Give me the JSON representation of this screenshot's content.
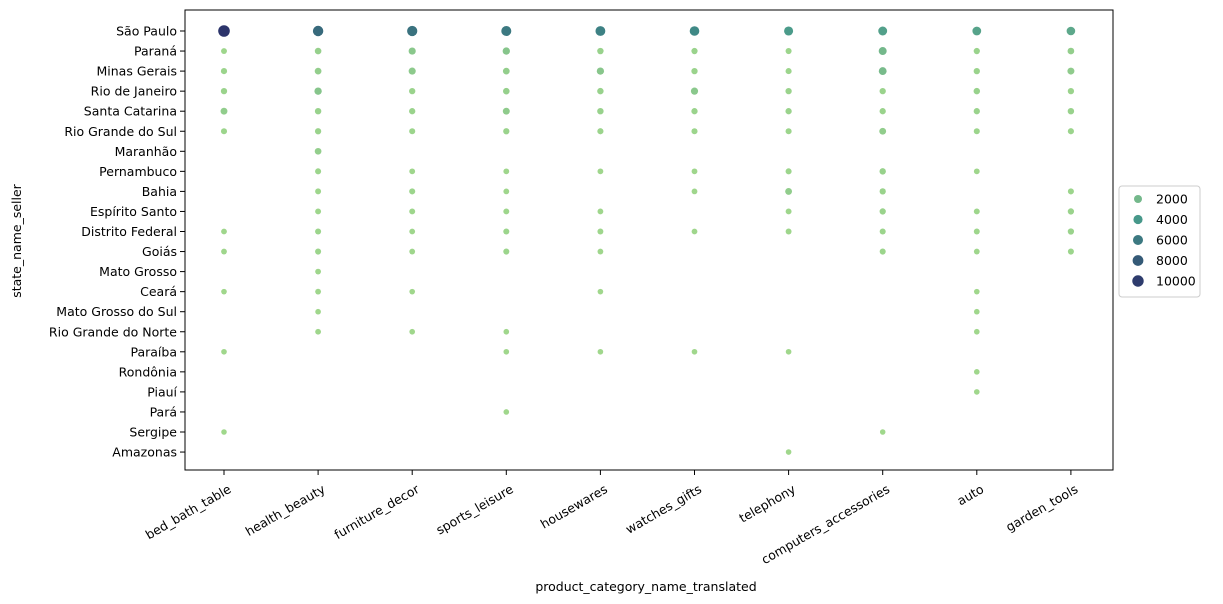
{
  "chart_data": {
    "type": "scatter",
    "xlabel": "product_category_name_translated",
    "ylabel": "state_name_seller",
    "categories_x": [
      "bed_bath_table",
      "health_beauty",
      "furniture_decor",
      "sports_leisure",
      "housewares",
      "watches_gifts",
      "telephony",
      "computers_accessories",
      "auto",
      "garden_tools"
    ],
    "categories_y": [
      "São Paulo",
      "Paraná",
      "Minas Gerais",
      "Rio de Janeiro",
      "Santa Catarina",
      "Rio Grande do Sul",
      "Maranhão",
      "Pernambuco",
      "Bahia",
      "Espírito Santo",
      "Distrito Federal",
      "Goiás",
      "Mato Grosso",
      "Ceará",
      "Mato Grosso do Sul",
      "Rio Grande do Norte",
      "Paraíba",
      "Rondônia",
      "Piauí",
      "Pará",
      "Sergipe",
      "Amazonas"
    ],
    "legend": {
      "placement": "right",
      "entries": [
        {
          "label": "2000",
          "value": 2000
        },
        {
          "label": "4000",
          "value": 4000
        },
        {
          "label": "6000",
          "value": 6000
        },
        {
          "label": "8000",
          "value": 8000
        },
        {
          "label": "10000",
          "value": 10000
        }
      ]
    },
    "colors": {
      "low": "#a1d88c",
      "mid": "#42958a",
      "high": "#2c346b"
    },
    "points": [
      {
        "x": "bed_bath_table",
        "y": "São Paulo",
        "value": 10500
      },
      {
        "x": "bed_bath_table",
        "y": "Paraná",
        "value": 150
      },
      {
        "x": "bed_bath_table",
        "y": "Minas Gerais",
        "value": 250
      },
      {
        "x": "bed_bath_table",
        "y": "Rio de Janeiro",
        "value": 300
      },
      {
        "x": "bed_bath_table",
        "y": "Santa Catarina",
        "value": 700
      },
      {
        "x": "bed_bath_table",
        "y": "Rio Grande do Sul",
        "value": 200
      },
      {
        "x": "bed_bath_table",
        "y": "Distrito Federal",
        "value": 100
      },
      {
        "x": "bed_bath_table",
        "y": "Goiás",
        "value": 100
      },
      {
        "x": "bed_bath_table",
        "y": "Ceará",
        "value": 50
      },
      {
        "x": "bed_bath_table",
        "y": "Paraíba",
        "value": 50
      },
      {
        "x": "bed_bath_table",
        "y": "Sergipe",
        "value": 30
      },
      {
        "x": "health_beauty",
        "y": "São Paulo",
        "value": 7000
      },
      {
        "x": "health_beauty",
        "y": "Paraná",
        "value": 500
      },
      {
        "x": "health_beauty",
        "y": "Minas Gerais",
        "value": 600
      },
      {
        "x": "health_beauty",
        "y": "Rio de Janeiro",
        "value": 1200
      },
      {
        "x": "health_beauty",
        "y": "Santa Catarina",
        "value": 400
      },
      {
        "x": "health_beauty",
        "y": "Rio Grande do Sul",
        "value": 300
      },
      {
        "x": "health_beauty",
        "y": "Maranhão",
        "value": 600
      },
      {
        "x": "health_beauty",
        "y": "Pernambuco",
        "value": 200
      },
      {
        "x": "health_beauty",
        "y": "Bahia",
        "value": 150
      },
      {
        "x": "health_beauty",
        "y": "Espírito Santo",
        "value": 150
      },
      {
        "x": "health_beauty",
        "y": "Distrito Federal",
        "value": 200
      },
      {
        "x": "health_beauty",
        "y": "Goiás",
        "value": 200
      },
      {
        "x": "health_beauty",
        "y": "Mato Grosso",
        "value": 100
      },
      {
        "x": "health_beauty",
        "y": "Ceará",
        "value": 100
      },
      {
        "x": "health_beauty",
        "y": "Mato Grosso do Sul",
        "value": 50
      },
      {
        "x": "health_beauty",
        "y": "Rio Grande do Norte",
        "value": 100
      },
      {
        "x": "furniture_decor",
        "y": "São Paulo",
        "value": 6500
      },
      {
        "x": "furniture_decor",
        "y": "Paraná",
        "value": 1000
      },
      {
        "x": "furniture_decor",
        "y": "Minas Gerais",
        "value": 900
      },
      {
        "x": "furniture_decor",
        "y": "Rio de Janeiro",
        "value": 300
      },
      {
        "x": "furniture_decor",
        "y": "Santa Catarina",
        "value": 300
      },
      {
        "x": "furniture_decor",
        "y": "Rio Grande do Sul",
        "value": 200
      },
      {
        "x": "furniture_decor",
        "y": "Pernambuco",
        "value": 100
      },
      {
        "x": "furniture_decor",
        "y": "Bahia",
        "value": 200
      },
      {
        "x": "furniture_decor",
        "y": "Espírito Santo",
        "value": 150
      },
      {
        "x": "furniture_decor",
        "y": "Distrito Federal",
        "value": 100
      },
      {
        "x": "furniture_decor",
        "y": "Goiás",
        "value": 100
      },
      {
        "x": "furniture_decor",
        "y": "Ceará",
        "value": 50
      },
      {
        "x": "furniture_decor",
        "y": "Rio Grande do Norte",
        "value": 50
      },
      {
        "x": "sports_leisure",
        "y": "São Paulo",
        "value": 6000
      },
      {
        "x": "sports_leisure",
        "y": "Paraná",
        "value": 1200
      },
      {
        "x": "sports_leisure",
        "y": "Minas Gerais",
        "value": 600
      },
      {
        "x": "sports_leisure",
        "y": "Rio de Janeiro",
        "value": 500
      },
      {
        "x": "sports_leisure",
        "y": "Santa Catarina",
        "value": 800
      },
      {
        "x": "sports_leisure",
        "y": "Rio Grande do Sul",
        "value": 300
      },
      {
        "x": "sports_leisure",
        "y": "Pernambuco",
        "value": 100
      },
      {
        "x": "sports_leisure",
        "y": "Bahia",
        "value": 100
      },
      {
        "x": "sports_leisure",
        "y": "Espírito Santo",
        "value": 150
      },
      {
        "x": "sports_leisure",
        "y": "Distrito Federal",
        "value": 200
      },
      {
        "x": "sports_leisure",
        "y": "Goiás",
        "value": 200
      },
      {
        "x": "sports_leisure",
        "y": "Rio Grande do Norte",
        "value": 50
      },
      {
        "x": "sports_leisure",
        "y": "Paraíba",
        "value": 50
      },
      {
        "x": "sports_leisure",
        "y": "Pará",
        "value": 50
      },
      {
        "x": "housewares",
        "y": "São Paulo",
        "value": 5500
      },
      {
        "x": "housewares",
        "y": "Paraná",
        "value": 400
      },
      {
        "x": "housewares",
        "y": "Minas Gerais",
        "value": 1100
      },
      {
        "x": "housewares",
        "y": "Rio de Janeiro",
        "value": 400
      },
      {
        "x": "housewares",
        "y": "Santa Catarina",
        "value": 400
      },
      {
        "x": "housewares",
        "y": "Rio Grande do Sul",
        "value": 250
      },
      {
        "x": "housewares",
        "y": "Pernambuco",
        "value": 100
      },
      {
        "x": "housewares",
        "y": "Espírito Santo",
        "value": 100
      },
      {
        "x": "housewares",
        "y": "Distrito Federal",
        "value": 150
      },
      {
        "x": "housewares",
        "y": "Goiás",
        "value": 100
      },
      {
        "x": "housewares",
        "y": "Ceará",
        "value": 50
      },
      {
        "x": "housewares",
        "y": "Paraíba",
        "value": 50
      },
      {
        "x": "watches_gifts",
        "y": "São Paulo",
        "value": 5000
      },
      {
        "x": "watches_gifts",
        "y": "Paraná",
        "value": 300
      },
      {
        "x": "watches_gifts",
        "y": "Minas Gerais",
        "value": 300
      },
      {
        "x": "watches_gifts",
        "y": "Rio de Janeiro",
        "value": 1000
      },
      {
        "x": "watches_gifts",
        "y": "Santa Catarina",
        "value": 300
      },
      {
        "x": "watches_gifts",
        "y": "Rio Grande do Sul",
        "value": 200
      },
      {
        "x": "watches_gifts",
        "y": "Pernambuco",
        "value": 100
      },
      {
        "x": "watches_gifts",
        "y": "Bahia",
        "value": 100
      },
      {
        "x": "watches_gifts",
        "y": "Distrito Federal",
        "value": 100
      },
      {
        "x": "watches_gifts",
        "y": "Paraíba",
        "value": 50
      },
      {
        "x": "telephony",
        "y": "São Paulo",
        "value": 3800
      },
      {
        "x": "telephony",
        "y": "Paraná",
        "value": 200
      },
      {
        "x": "telephony",
        "y": "Minas Gerais",
        "value": 200
      },
      {
        "x": "telephony",
        "y": "Rio de Janeiro",
        "value": 300
      },
      {
        "x": "telephony",
        "y": "Santa Catarina",
        "value": 300
      },
      {
        "x": "telephony",
        "y": "Rio Grande do Sul",
        "value": 200
      },
      {
        "x": "telephony",
        "y": "Pernambuco",
        "value": 200
      },
      {
        "x": "telephony",
        "y": "Bahia",
        "value": 700
      },
      {
        "x": "telephony",
        "y": "Espírito Santo",
        "value": 150
      },
      {
        "x": "telephony",
        "y": "Distrito Federal",
        "value": 150
      },
      {
        "x": "telephony",
        "y": "Paraíba",
        "value": 50
      },
      {
        "x": "telephony",
        "y": "Amazonas",
        "value": 50
      },
      {
        "x": "computers_accessories",
        "y": "São Paulo",
        "value": 3500
      },
      {
        "x": "computers_accessories",
        "y": "Paraná",
        "value": 2000
      },
      {
        "x": "computers_accessories",
        "y": "Minas Gerais",
        "value": 1800
      },
      {
        "x": "computers_accessories",
        "y": "Rio de Janeiro",
        "value": 300
      },
      {
        "x": "computers_accessories",
        "y": "Santa Catarina",
        "value": 300
      },
      {
        "x": "computers_accessories",
        "y": "Rio Grande do Sul",
        "value": 700
      },
      {
        "x": "computers_accessories",
        "y": "Pernambuco",
        "value": 400
      },
      {
        "x": "computers_accessories",
        "y": "Bahia",
        "value": 300
      },
      {
        "x": "computers_accessories",
        "y": "Espírito Santo",
        "value": 300
      },
      {
        "x": "computers_accessories",
        "y": "Distrito Federal",
        "value": 200
      },
      {
        "x": "computers_accessories",
        "y": "Goiás",
        "value": 200
      },
      {
        "x": "computers_accessories",
        "y": "Sergipe",
        "value": 30
      },
      {
        "x": "auto",
        "y": "São Paulo",
        "value": 3300
      },
      {
        "x": "auto",
        "y": "Paraná",
        "value": 300
      },
      {
        "x": "auto",
        "y": "Minas Gerais",
        "value": 300
      },
      {
        "x": "auto",
        "y": "Rio de Janeiro",
        "value": 400
      },
      {
        "x": "auto",
        "y": "Santa Catarina",
        "value": 300
      },
      {
        "x": "auto",
        "y": "Rio Grande do Sul",
        "value": 200
      },
      {
        "x": "auto",
        "y": "Pernambuco",
        "value": 100
      },
      {
        "x": "auto",
        "y": "Espírito Santo",
        "value": 150
      },
      {
        "x": "auto",
        "y": "Distrito Federal",
        "value": 150
      },
      {
        "x": "auto",
        "y": "Goiás",
        "value": 100
      },
      {
        "x": "auto",
        "y": "Ceará",
        "value": 50
      },
      {
        "x": "auto",
        "y": "Mato Grosso do Sul",
        "value": 50
      },
      {
        "x": "auto",
        "y": "Rio Grande do Norte",
        "value": 50
      },
      {
        "x": "auto",
        "y": "Rondônia",
        "value": 50
      },
      {
        "x": "auto",
        "y": "Piauí",
        "value": 50
      },
      {
        "x": "garden_tools",
        "y": "São Paulo",
        "value": 3000
      },
      {
        "x": "garden_tools",
        "y": "Paraná",
        "value": 600
      },
      {
        "x": "garden_tools",
        "y": "Minas Gerais",
        "value": 800
      },
      {
        "x": "garden_tools",
        "y": "Rio de Janeiro",
        "value": 300
      },
      {
        "x": "garden_tools",
        "y": "Santa Catarina",
        "value": 400
      },
      {
        "x": "garden_tools",
        "y": "Rio Grande do Sul",
        "value": 250
      },
      {
        "x": "garden_tools",
        "y": "Bahia",
        "value": 200
      },
      {
        "x": "garden_tools",
        "y": "Espírito Santo",
        "value": 300
      },
      {
        "x": "garden_tools",
        "y": "Distrito Federal",
        "value": 300
      },
      {
        "x": "garden_tools",
        "y": "Goiás",
        "value": 200
      }
    ]
  }
}
